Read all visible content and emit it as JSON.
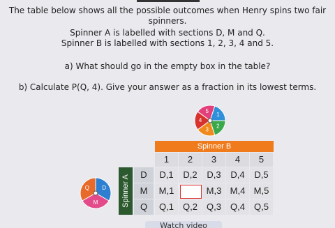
{
  "question": {
    "intro": [
      "The table below shows all the possible outcomes when Henry spins two fair",
      "spinners.",
      "Spinner A is labelled with sections D, M and Q.",
      "Spinner B is labelled with sections 1, 2, 3, 4 and 5."
    ],
    "part_a": "a) What should go in the empty box in the table?",
    "part_b": "b) Calculate P(Q, 4). Give your answer as a fraction in its lowest terms."
  },
  "spinner_b": {
    "sections": [
      "5",
      "1",
      "2",
      "3",
      "4"
    ]
  },
  "spinner_a": {
    "sections": [
      "Q",
      "D",
      "M"
    ]
  },
  "table": {
    "column_title": "Spinner B",
    "row_title": "Spinner A",
    "columns": [
      "1",
      "2",
      "3",
      "4",
      "5"
    ],
    "rows": [
      {
        "label": "D",
        "cells": [
          "D,1",
          "D,2",
          "D,3",
          "D,4",
          "D,5"
        ]
      },
      {
        "label": "M",
        "cells": [
          "M,1",
          null,
          "M,3",
          "M,4",
          "M,5"
        ]
      },
      {
        "label": "Q",
        "cells": [
          "Q,1",
          "Q,2",
          "Q,3",
          "Q,4",
          "Q,5"
        ]
      }
    ]
  },
  "button": "Watch video"
}
